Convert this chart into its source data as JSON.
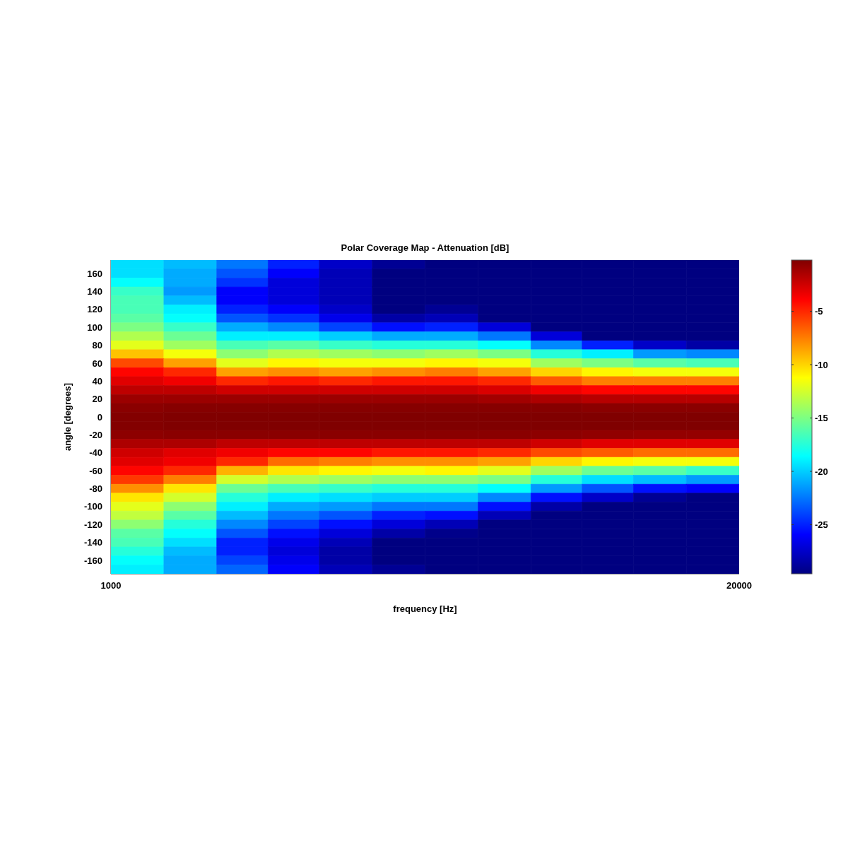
{
  "chart_data": {
    "type": "heatmap",
    "title": "Polar Coverage Map - Attenuation [dB]",
    "xlabel": "frequency [Hz]",
    "ylabel": "angle [degrees]",
    "x": [
      1800,
      3400,
      5000,
      6500,
      8100,
      9700,
      11300,
      12900,
      14500,
      16000,
      17600,
      19200
    ],
    "cells": [
      [
        -19.5,
        -20.5,
        -22.5,
        -25,
        -27.5,
        -29,
        -29.6,
        -29.6,
        -29.6,
        -29.6,
        -29.6,
        -29.6
      ],
      [
        -19.5,
        -21,
        -23.5,
        -26,
        -28,
        -29.6,
        -29.6,
        -29.6,
        -29.6,
        -29.6,
        -29.6,
        -29.6
      ],
      [
        -18.5,
        -21,
        -24.5,
        -27,
        -28,
        -29.6,
        -29.6,
        -29.6,
        -29.6,
        -29.6,
        -29.6,
        -29.6
      ],
      [
        -17,
        -21.5,
        -26,
        -27,
        -28,
        -29.6,
        -29.6,
        -29.6,
        -29.6,
        -29.6,
        -29.6,
        -29.6
      ],
      [
        -16.5,
        -20.5,
        -26,
        -27,
        -28,
        -29.6,
        -29.6,
        -29.6,
        -29.6,
        -29.6,
        -29.6,
        -29.6
      ],
      [
        -16.5,
        -19,
        -25,
        -26,
        -27.5,
        -29.6,
        -29,
        -29.6,
        -29.6,
        -29.6,
        -29.6,
        -29.6
      ],
      [
        -16,
        -18.5,
        -23.5,
        -24.5,
        -26.5,
        -28.5,
        -28,
        -29.6,
        -29.6,
        -29.6,
        -29.6,
        -29.6
      ],
      [
        -15,
        -17,
        -21,
        -22,
        -24,
        -25.5,
        -25,
        -27,
        -29.6,
        -29.6,
        -29.6,
        -29.6
      ],
      [
        -13.5,
        -15.5,
        -19,
        -19,
        -20,
        -21,
        -21,
        -22.5,
        -27,
        -29.6,
        -29.6,
        -29.6
      ],
      [
        -12,
        -14,
        -16.5,
        -16,
        -17,
        -17.5,
        -17.5,
        -18.5,
        -22,
        -25,
        -27.5,
        -28.5
      ],
      [
        -9.5,
        -11.5,
        -14.5,
        -13.5,
        -14,
        -14.5,
        -14,
        -15,
        -17.5,
        -19,
        -21.5,
        -22
      ],
      [
        -6,
        -8.5,
        -12,
        -11,
        -11.5,
        -11.5,
        -11,
        -11.5,
        -14,
        -15,
        -16,
        -16.5
      ],
      [
        -4,
        -5,
        -8.5,
        -8,
        -8.5,
        -8,
        -7.5,
        -8.5,
        -10,
        -11,
        -11.5,
        -11.5
      ],
      [
        -3,
        -3.5,
        -5,
        -4.5,
        -5,
        -4.5,
        -4.5,
        -5,
        -6.5,
        -7.5,
        -7.5,
        -7.5
      ],
      [
        -2,
        -2,
        -2.5,
        -2.5,
        -2.5,
        -2.5,
        -2.5,
        -2.8,
        -3.5,
        -4,
        -4,
        -4
      ],
      [
        -1,
        -1,
        -1,
        -1,
        -1,
        -1,
        -1,
        -1.2,
        -1.5,
        -1.8,
        -1.8,
        -1.8
      ],
      [
        -0.5,
        -0.4,
        -0.4,
        -0.4,
        -0.4,
        -0.4,
        -0.4,
        -0.4,
        -0.4,
        -0.5,
        -0.5,
        -0.5
      ],
      [
        -0.3,
        -0.2,
        -0.2,
        -0.2,
        -0.2,
        -0.2,
        -0.2,
        -0.2,
        -0.2,
        -0.2,
        -0.2,
        -0.2
      ],
      [
        -0.3,
        -0.2,
        -0.2,
        -0.2,
        -0.2,
        -0.2,
        -0.2,
        -0.2,
        -0.2,
        -0.2,
        -0.2,
        -0.2
      ],
      [
        -0.6,
        -0.5,
        -0.5,
        -0.5,
        -0.5,
        -0.5,
        -0.5,
        -0.5,
        -0.6,
        -0.7,
        -0.8,
        -0.8
      ],
      [
        -1.5,
        -1.5,
        -2,
        -2,
        -2,
        -2,
        -2,
        -2,
        -2.5,
        -3,
        -3,
        -3
      ],
      [
        -2.5,
        -3,
        -3.5,
        -4,
        -4,
        -4.5,
        -4.5,
        -5,
        -6,
        -6.5,
        -7,
        -7
      ],
      [
        -3,
        -3.5,
        -5,
        -7,
        -7.5,
        -8,
        -8,
        -8.5,
        -10,
        -11,
        -11.5,
        -11.5
      ],
      [
        -4,
        -5,
        -9,
        -10.5,
        -11,
        -11.5,
        -11,
        -12,
        -14,
        -15.5,
        -16,
        -17
      ],
      [
        -5.5,
        -7.5,
        -12.5,
        -13.5,
        -14,
        -14.5,
        -14.5,
        -15,
        -17.5,
        -19.5,
        -20.5,
        -21.5
      ],
      [
        -8,
        -10.5,
        -15.5,
        -16.5,
        -17,
        -17.5,
        -17.5,
        -18.5,
        -21.5,
        -23.5,
        -25.5,
        -26
      ],
      [
        -10.5,
        -12.5,
        -17.5,
        -19,
        -19.5,
        -20,
        -20,
        -22,
        -25.5,
        -27.5,
        -29,
        -29.6
      ],
      [
        -12,
        -14.5,
        -19,
        -21,
        -21.5,
        -22.5,
        -22.5,
        -25.5,
        -28.5,
        -29.6,
        -29.6,
        -29.6
      ],
      [
        -13,
        -16,
        -20.5,
        -22.5,
        -23.5,
        -25,
        -25.5,
        -28,
        -29.6,
        -29.6,
        -29.6,
        -29.6
      ],
      [
        -14.5,
        -17.5,
        -22,
        -24,
        -25.5,
        -27,
        -28,
        -29.6,
        -29.6,
        -29.6,
        -29.6,
        -29.6
      ],
      [
        -16,
        -18.5,
        -23.5,
        -25.5,
        -27,
        -28.5,
        -29.3,
        -29.6,
        -29.6,
        -29.6,
        -29.6,
        -29.6
      ],
      [
        -16.5,
        -19.5,
        -25,
        -26.5,
        -28,
        -29.6,
        -29.6,
        -29.6,
        -29.6,
        -29.6,
        -29.6,
        -29.6
      ],
      [
        -17.5,
        -20.5,
        -25,
        -27,
        -28.5,
        -29.6,
        -29.6,
        -29.6,
        -29.6,
        -29.6,
        -29.6,
        -29.6
      ],
      [
        -18.5,
        -21,
        -24,
        -26.5,
        -28.5,
        -29.6,
        -29.6,
        -29.6,
        -29.6,
        -29.6,
        -29.6,
        -29.6
      ],
      [
        -19,
        -21,
        -23,
        -26,
        -28,
        -29,
        -29.6,
        -29.6,
        -29.6,
        -29.6,
        -29.6,
        -29.6
      ]
    ],
    "xlim": [
      1000,
      20000
    ],
    "xticks": [
      1000,
      20000
    ],
    "ylim": [
      -175,
      175
    ],
    "yticks": [
      -160,
      -140,
      -120,
      -100,
      -80,
      -60,
      -40,
      -20,
      0,
      20,
      40,
      60,
      80,
      100,
      120,
      140,
      160
    ],
    "clim": [
      -29.6,
      -0.2
    ],
    "cticks": [
      -25,
      -20,
      -15,
      -10,
      -5
    ]
  }
}
